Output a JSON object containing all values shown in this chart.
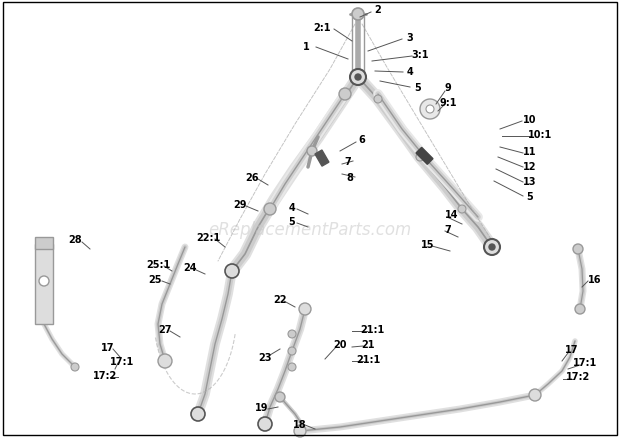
{
  "bg_color": "#ffffff",
  "border_color": "#000000",
  "line_color": "#999999",
  "dark_line": "#555555",
  "label_color": "#000000",
  "watermark": "eReplacementParts.com",
  "watermark_color": "#c8c8c8",
  "fig_w": 6.2,
  "fig_h": 4.39,
  "dpi": 100
}
